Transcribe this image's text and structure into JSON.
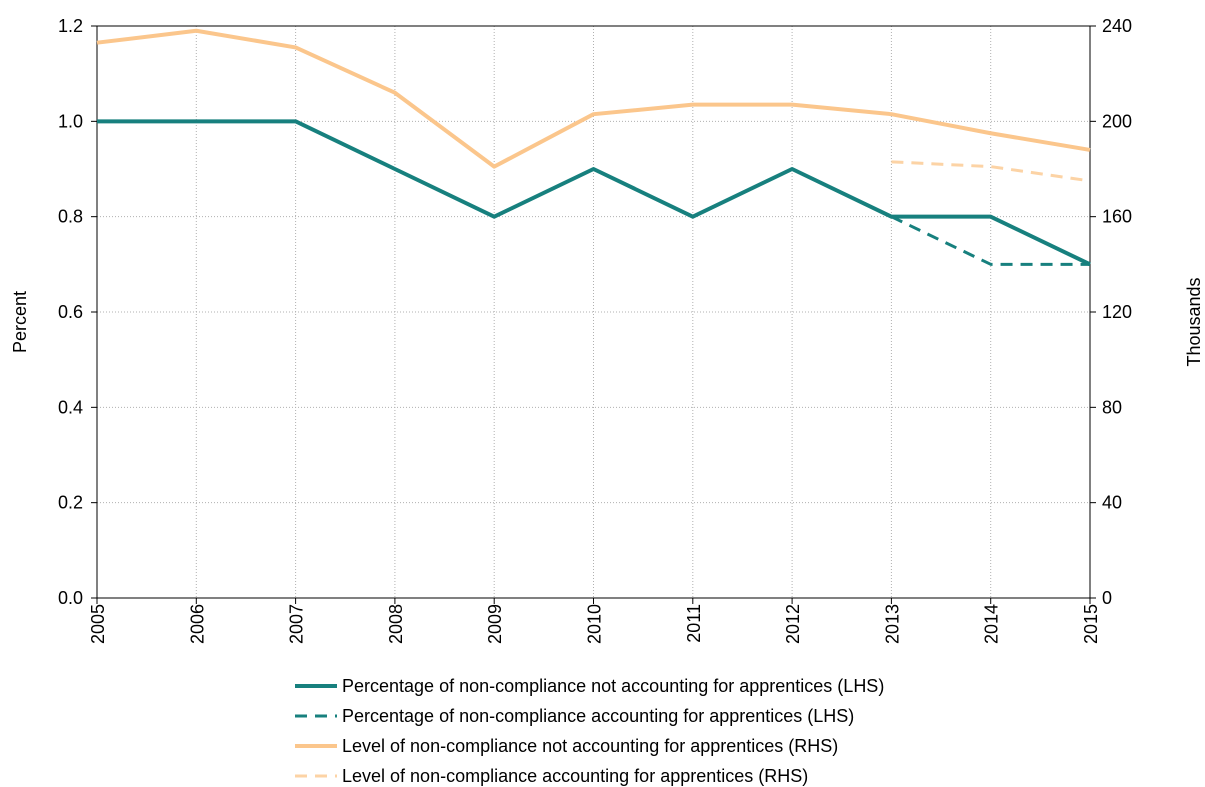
{
  "chart_data": {
    "type": "line",
    "ylabel": "Percent",
    "y2label": "Thousands",
    "x": [
      2005,
      2006,
      2007,
      2008,
      2009,
      2010,
      2011,
      2012,
      2013,
      2014,
      2015
    ],
    "xlim": [
      2005,
      2015
    ],
    "xticks": [
      2005,
      2006,
      2007,
      2008,
      2009,
      2010,
      2011,
      2012,
      2013,
      2014,
      2015
    ],
    "ylim": [
      0,
      1.2
    ],
    "yticks": [
      {
        "value": 0,
        "label": "0.0"
      },
      0.2,
      0.4,
      0.6,
      0.8,
      {
        "value": 1,
        "label": "1.0"
      },
      1.2
    ],
    "y2lim": [
      0,
      240
    ],
    "y2ticks": [
      0,
      40,
      80,
      120,
      160,
      200,
      240
    ],
    "grid": true,
    "series": [
      {
        "name": "Percentage of non-compliance not accounting for apprentices (LHS)",
        "color": "#17807e",
        "line_style": "solid",
        "values": [
          1.0,
          1.0,
          1.0,
          0.9,
          0.8,
          0.9,
          0.8,
          0.9,
          0.8,
          0.8,
          0.7
        ]
      },
      {
        "name": "Percentage of non-compliance accounting for apprentices (LHS)",
        "color": "#17807e",
        "line_style": "dashed",
        "values": [
          null,
          null,
          null,
          null,
          null,
          null,
          null,
          null,
          0.8,
          0.7,
          0.7
        ]
      },
      {
        "name": "Level of non-compliance not accounting for apprentices (RHS)",
        "color": "#fbc68c",
        "line_style": "solid",
        "axis": "y2",
        "values": [
          233,
          238,
          231,
          212,
          181,
          203,
          207,
          207,
          203,
          195,
          188
        ]
      },
      {
        "name": "Level of non-compliance accounting for apprentices (RHS)",
        "color": "#fcd3a5",
        "line_style": "dashed",
        "axis": "y2",
        "values": [
          null,
          null,
          null,
          null,
          null,
          null,
          null,
          null,
          183,
          181,
          175
        ]
      }
    ]
  }
}
